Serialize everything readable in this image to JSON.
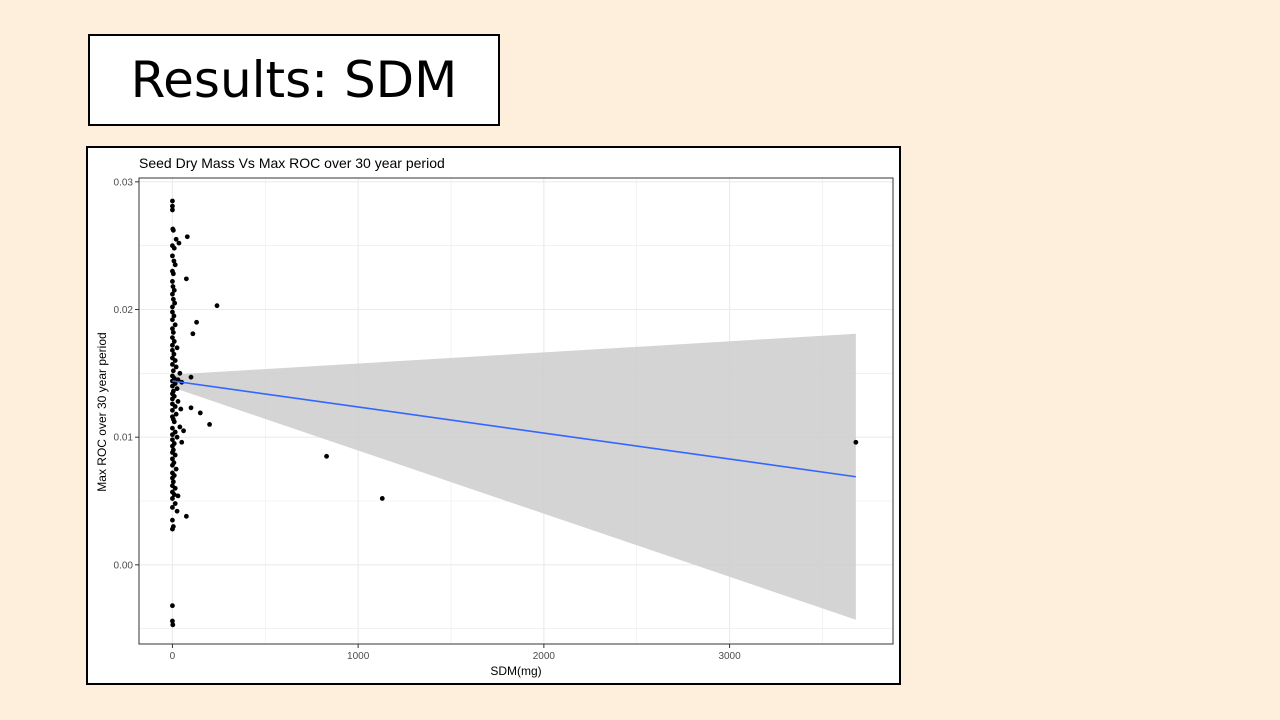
{
  "slide": {
    "title": "Results: SDM"
  },
  "chart_data": {
    "type": "scatter",
    "title": "Seed Dry Mass Vs Max ROC over 30 year period",
    "xlabel": "SDM(mg)",
    "ylabel": "Max ROC over 30 year period",
    "xlim": [
      -180,
      3880
    ],
    "ylim": [
      -0.0062,
      0.0303
    ],
    "x_ticks": [
      0,
      1000,
      2000,
      3000
    ],
    "x_tick_labels": [
      "0",
      "1000",
      "2000",
      "3000"
    ],
    "y_ticks": [
      0.0,
      0.01,
      0.02,
      0.03
    ],
    "y_tick_labels": [
      "0.00",
      "0.01",
      "0.02",
      "0.03"
    ],
    "grid": true,
    "points": [
      [
        0,
        0.0285
      ],
      [
        0,
        0.0281
      ],
      [
        0,
        0.0278
      ],
      [
        2,
        0.0263
      ],
      [
        5,
        0.0262
      ],
      [
        0,
        0.025
      ],
      [
        10,
        0.0248
      ],
      [
        20,
        0.0255
      ],
      [
        35,
        0.0252
      ],
      [
        80,
        0.0257
      ],
      [
        0,
        0.0242
      ],
      [
        8,
        0.0238
      ],
      [
        15,
        0.0235
      ],
      [
        0,
        0.023
      ],
      [
        5,
        0.0228
      ],
      [
        75,
        0.0224
      ],
      [
        0,
        0.0222
      ],
      [
        3,
        0.0218
      ],
      [
        10,
        0.0215
      ],
      [
        0,
        0.0212
      ],
      [
        5,
        0.0208
      ],
      [
        12,
        0.0205
      ],
      [
        0,
        0.0202
      ],
      [
        240,
        0.0203
      ],
      [
        0,
        0.0198
      ],
      [
        8,
        0.0195
      ],
      [
        0,
        0.0192
      ],
      [
        130,
        0.019
      ],
      [
        15,
        0.0188
      ],
      [
        0,
        0.0185
      ],
      [
        110,
        0.0181
      ],
      [
        5,
        0.0182
      ],
      [
        0,
        0.0178
      ],
      [
        10,
        0.0175
      ],
      [
        0,
        0.0172
      ],
      [
        25,
        0.017
      ],
      [
        0,
        0.0168
      ],
      [
        8,
        0.0165
      ],
      [
        0,
        0.0162
      ],
      [
        15,
        0.016
      ],
      [
        0,
        0.0157
      ],
      [
        20,
        0.0155
      ],
      [
        5,
        0.0152
      ],
      [
        40,
        0.015
      ],
      [
        0,
        0.0148
      ],
      [
        100,
        0.0147
      ],
      [
        10,
        0.0146
      ],
      [
        30,
        0.0145
      ],
      [
        0,
        0.0144
      ],
      [
        50,
        0.0143
      ],
      [
        15,
        0.0142
      ],
      [
        0,
        0.014
      ],
      [
        25,
        0.0138
      ],
      [
        5,
        0.0136
      ],
      [
        0,
        0.0134
      ],
      [
        10,
        0.0132
      ],
      [
        0,
        0.013
      ],
      [
        30,
        0.0128
      ],
      [
        0,
        0.0126
      ],
      [
        15,
        0.0124
      ],
      [
        100,
        0.0123
      ],
      [
        45,
        0.0122
      ],
      [
        0,
        0.0121
      ],
      [
        150,
        0.0119
      ],
      [
        20,
        0.0118
      ],
      [
        0,
        0.0116
      ],
      [
        5,
        0.0114
      ],
      [
        10,
        0.0112
      ],
      [
        200,
        0.011
      ],
      [
        40,
        0.0108
      ],
      [
        0,
        0.0107
      ],
      [
        60,
        0.0105
      ],
      [
        15,
        0.0104
      ],
      [
        0,
        0.0102
      ],
      [
        25,
        0.01
      ],
      [
        0,
        0.0098
      ],
      [
        50,
        0.0096
      ],
      [
        10,
        0.0095
      ],
      [
        0,
        0.0093
      ],
      [
        5,
        0.009
      ],
      [
        0,
        0.0088
      ],
      [
        15,
        0.0086
      ],
      [
        0,
        0.0083
      ],
      [
        830,
        0.0085
      ],
      [
        8,
        0.008
      ],
      [
        0,
        0.0078
      ],
      [
        20,
        0.0075
      ],
      [
        0,
        0.0072
      ],
      [
        10,
        0.007
      ],
      [
        0,
        0.0068
      ],
      [
        5,
        0.0065
      ],
      [
        0,
        0.0062
      ],
      [
        15,
        0.006
      ],
      [
        0,
        0.0057
      ],
      [
        30,
        0.0054
      ],
      [
        10,
        0.0055
      ],
      [
        0,
        0.0052
      ],
      [
        1130,
        0.0052
      ],
      [
        15,
        0.0048
      ],
      [
        0,
        0.0045
      ],
      [
        25,
        0.0042
      ],
      [
        75,
        0.0038
      ],
      [
        0,
        0.0035
      ],
      [
        5,
        0.003
      ],
      [
        0,
        0.0028
      ],
      [
        3680,
        0.0096
      ],
      [
        0,
        -0.0032
      ],
      [
        0,
        -0.0044
      ],
      [
        2,
        -0.0047
      ]
    ],
    "fit_line": {
      "x": [
        0,
        3680
      ],
      "y": [
        0.0144,
        0.0069
      ],
      "color": "#3366ff"
    },
    "confidence_band": {
      "x": [
        0,
        3680
      ],
      "upper": [
        0.0149,
        0.0181
      ],
      "lower": [
        0.0139,
        -0.0043
      ],
      "color": "#cccccc"
    },
    "colors": {
      "point": "#000000",
      "grid": "#ebebeb",
      "axis_text": "#4d4d4d"
    }
  }
}
